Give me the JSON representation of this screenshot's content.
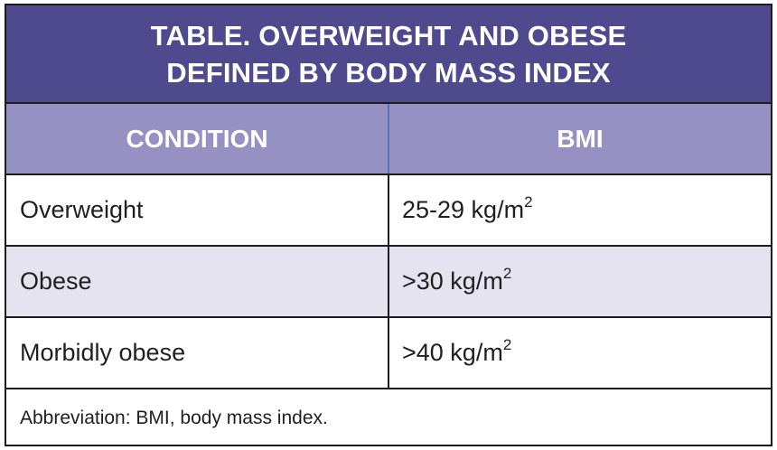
{
  "table": {
    "title_line1": "TABLE. OVERWEIGHT AND OBESE",
    "title_line2": "DEFINED BY BODY MASS INDEX",
    "columns": {
      "condition": "CONDITION",
      "bmi": "BMI"
    },
    "rows": [
      {
        "condition": "Overweight",
        "bmi_value": "25-29 kg/m",
        "bmi_exponent": "2"
      },
      {
        "condition": "Obese",
        "bmi_value": ">30 kg/m",
        "bmi_exponent": "2"
      },
      {
        "condition": "Morbidly obese",
        "bmi_value": ">40 kg/m",
        "bmi_exponent": "2"
      }
    ],
    "footnote": "Abbreviation: BMI, body mass index."
  },
  "colors": {
    "title_background": "#4f4a8d",
    "header_background": "#9591c2",
    "shaded_row": "#e5e3f0",
    "header_text": "#ffffff",
    "border": "#1d1d1d"
  }
}
